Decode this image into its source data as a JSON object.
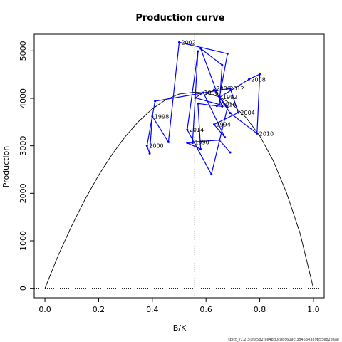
{
  "chart_data": {
    "type": "line",
    "title": "Production curve",
    "xlabel": "B/K",
    "ylabel": "Production",
    "xlim": [
      -0.04,
      1.04
    ],
    "ylim": [
      -200,
      5350
    ],
    "xticks": [
      "0.0",
      "0.2",
      "0.4",
      "0.6",
      "0.8",
      "1.0"
    ],
    "yticks": [
      "0",
      "1000",
      "2000",
      "3000",
      "4000",
      "5000"
    ],
    "footnote": "spict_v1.2.3@fa5b2fae48d0c88c609cf384634389b55eb2eaae",
    "production_curve": {
      "x": [
        0.0,
        0.05,
        0.1,
        0.15,
        0.2,
        0.25,
        0.3,
        0.35,
        0.4,
        0.45,
        0.5,
        0.558,
        0.6,
        0.65,
        0.7,
        0.75,
        0.8,
        0.85,
        0.9,
        0.95,
        1.0
      ],
      "y": [
        0,
        700,
        1320,
        1880,
        2380,
        2820,
        3200,
        3520,
        3780,
        3970,
        4090,
        4130,
        4110,
        4030,
        3860,
        3590,
        3210,
        2690,
        2010,
        1160,
        0
      ]
    },
    "bmsy_line_x": 0.558,
    "series": [
      {
        "x": [
          0.55,
          0.53,
          0.58,
          0.57,
          0.64,
          0.66,
          0.58,
          0.66,
          0.65,
          0.56,
          0.59,
          0.67,
          0.63,
          0.72,
          0.69,
          0.41,
          0.38,
          0.39,
          0.4,
          0.46,
          0.5,
          0.68,
          0.65,
          0.76,
          0.8,
          0.79,
          0.69,
          0.63,
          0.68,
          0.62,
          0.53,
          0.57,
          0.55,
          0.65,
          0.69
        ],
        "y": [
          3060,
          3060,
          2930,
          3890,
          3840,
          3830,
          5050,
          4700,
          3870,
          4010,
          4120,
          3180,
          3450,
          3700,
          4210,
          3940,
          3000,
          2840,
          3620,
          3080,
          5180,
          4940,
          4020,
          4400,
          4510,
          3260,
          3690,
          4180,
          3810,
          2400,
          3340,
          4990,
          3080,
          3120,
          2860
        ]
      }
    ],
    "year_labels": [
      {
        "text": "1990",
        "x": 0.55,
        "y": 3080
      },
      {
        "text": "1992",
        "x": 0.655,
        "y": 4030
      },
      {
        "text": "1994",
        "x": 0.63,
        "y": 3450
      },
      {
        "text": "1996",
        "x": 0.585,
        "y": 4120
      },
      {
        "text": "1998",
        "x": 0.4,
        "y": 3620
      },
      {
        "text": "2000",
        "x": 0.38,
        "y": 3000
      },
      {
        "text": "2002",
        "x": 0.5,
        "y": 5180
      },
      {
        "text": "2004",
        "x": 0.72,
        "y": 3700
      },
      {
        "text": "2006",
        "x": 0.63,
        "y": 4210
      },
      {
        "text": "2008",
        "x": 0.76,
        "y": 4400
      },
      {
        "text": "2010",
        "x": 0.79,
        "y": 3260
      },
      {
        "text": "2012",
        "x": 0.68,
        "y": 4210
      },
      {
        "text": "2014",
        "x": 0.53,
        "y": 3340
      },
      {
        "text": "2016",
        "x": 0.65,
        "y": 3870
      }
    ],
    "colors": {
      "trajectory": "#0000ff",
      "curve": "#000000"
    }
  }
}
